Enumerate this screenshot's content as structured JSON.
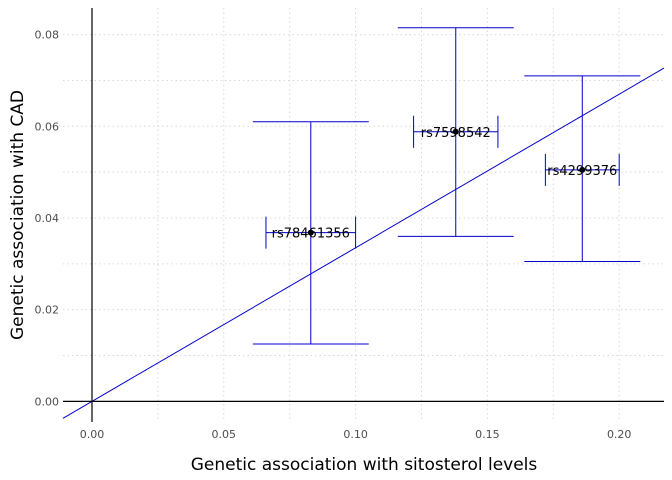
{
  "chart_data": {
    "type": "scatter",
    "title": "",
    "xlabel": "Genetic association with sitosterol levels",
    "ylabel": "Genetic association with CAD",
    "xlim": [
      -0.011,
      0.217
    ],
    "ylim": [
      -0.0045,
      0.0858
    ],
    "x_ticks": [
      0.0,
      0.05,
      0.1,
      0.15,
      0.2
    ],
    "x_tick_labels": [
      "0.00",
      "0.05",
      "0.10",
      "0.15",
      "0.20"
    ],
    "y_ticks": [
      0.0,
      0.02,
      0.04,
      0.06,
      0.08
    ],
    "y_tick_labels": [
      "0.00",
      "0.02",
      "0.04",
      "0.06",
      "0.08"
    ],
    "grid": true,
    "points": [
      {
        "label": "rs78461356",
        "x": 0.083,
        "y": 0.0368,
        "x_low": 0.066,
        "x_high": 0.1,
        "y_low": 0.0125,
        "y_high": 0.061
      },
      {
        "label": "rs7598542",
        "x": 0.138,
        "y": 0.0588,
        "x_low": 0.122,
        "x_high": 0.154,
        "y_low": 0.036,
        "y_high": 0.0815
      },
      {
        "label": "rs4299376",
        "x": 0.186,
        "y": 0.0505,
        "x_low": 0.172,
        "x_high": 0.2,
        "y_low": 0.0305,
        "y_high": 0.071
      }
    ],
    "fit_line": {
      "slope": 0.335,
      "intercept": 0.0
    },
    "colors": {
      "errorbar": "#0000cc",
      "fit_line": "#0000cc",
      "point": "#000000"
    }
  }
}
